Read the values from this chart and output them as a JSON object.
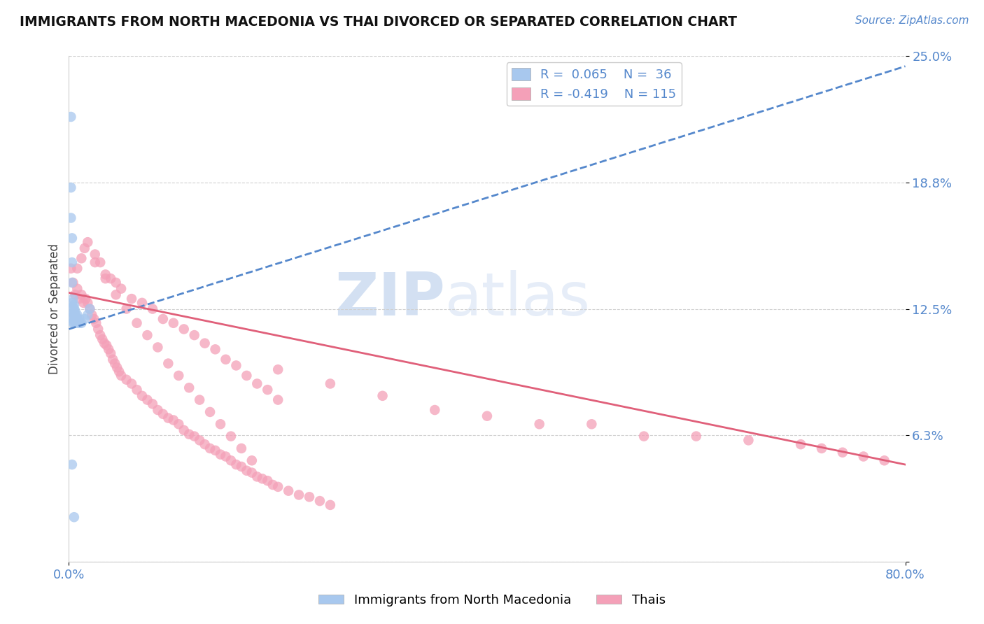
{
  "title": "IMMIGRANTS FROM NORTH MACEDONIA VS THAI DIVORCED OR SEPARATED CORRELATION CHART",
  "source_text": "Source: ZipAtlas.com",
  "ylabel": "Divorced or Separated",
  "xlim": [
    0.0,
    0.8
  ],
  "ylim": [
    0.0,
    0.25
  ],
  "yticks": [
    0.0,
    0.0625,
    0.125,
    0.1875,
    0.25
  ],
  "yticklabels": [
    "",
    "6.3%",
    "12.5%",
    "18.8%",
    "25.0%"
  ],
  "grid_color": "#d0d0d0",
  "background_color": "#ffffff",
  "blue_color": "#a8c8ee",
  "pink_color": "#f4a0b8",
  "blue_line_color": "#5588cc",
  "pink_line_color": "#e0607a",
  "watermark_text": "ZIPatlas",
  "blue_scatter_x": [
    0.002,
    0.002,
    0.002,
    0.003,
    0.003,
    0.003,
    0.003,
    0.004,
    0.004,
    0.004,
    0.004,
    0.004,
    0.005,
    0.005,
    0.005,
    0.005,
    0.005,
    0.005,
    0.005,
    0.006,
    0.006,
    0.006,
    0.007,
    0.007,
    0.007,
    0.008,
    0.008,
    0.009,
    0.01,
    0.01,
    0.012,
    0.015,
    0.018,
    0.02,
    0.003,
    0.005
  ],
  "blue_scatter_y": [
    0.22,
    0.185,
    0.17,
    0.16,
    0.148,
    0.138,
    0.128,
    0.13,
    0.126,
    0.123,
    0.12,
    0.118,
    0.127,
    0.125,
    0.123,
    0.122,
    0.12,
    0.119,
    0.118,
    0.124,
    0.122,
    0.12,
    0.121,
    0.12,
    0.118,
    0.122,
    0.12,
    0.119,
    0.118,
    0.12,
    0.118,
    0.12,
    0.122,
    0.125,
    0.048,
    0.022
  ],
  "pink_scatter_x": [
    0.002,
    0.004,
    0.006,
    0.008,
    0.01,
    0.012,
    0.014,
    0.016,
    0.018,
    0.02,
    0.022,
    0.024,
    0.026,
    0.028,
    0.03,
    0.032,
    0.034,
    0.036,
    0.038,
    0.04,
    0.042,
    0.044,
    0.046,
    0.048,
    0.05,
    0.055,
    0.06,
    0.065,
    0.07,
    0.075,
    0.08,
    0.085,
    0.09,
    0.095,
    0.1,
    0.105,
    0.11,
    0.115,
    0.12,
    0.125,
    0.13,
    0.135,
    0.14,
    0.145,
    0.15,
    0.155,
    0.16,
    0.165,
    0.17,
    0.175,
    0.18,
    0.185,
    0.19,
    0.195,
    0.2,
    0.21,
    0.22,
    0.23,
    0.24,
    0.25,
    0.008,
    0.012,
    0.018,
    0.025,
    0.03,
    0.035,
    0.04,
    0.045,
    0.05,
    0.06,
    0.07,
    0.08,
    0.09,
    0.1,
    0.11,
    0.12,
    0.13,
    0.14,
    0.15,
    0.16,
    0.17,
    0.18,
    0.19,
    0.2,
    0.015,
    0.025,
    0.035,
    0.045,
    0.055,
    0.065,
    0.075,
    0.085,
    0.095,
    0.105,
    0.115,
    0.125,
    0.135,
    0.145,
    0.155,
    0.165,
    0.175,
    0.4,
    0.5,
    0.6,
    0.65,
    0.7,
    0.72,
    0.74,
    0.76,
    0.78,
    0.35,
    0.45,
    0.55,
    0.3,
    0.25,
    0.2
  ],
  "pink_scatter_y": [
    0.145,
    0.138,
    0.132,
    0.135,
    0.13,
    0.132,
    0.128,
    0.13,
    0.128,
    0.125,
    0.122,
    0.12,
    0.118,
    0.115,
    0.112,
    0.11,
    0.108,
    0.107,
    0.105,
    0.103,
    0.1,
    0.098,
    0.096,
    0.094,
    0.092,
    0.09,
    0.088,
    0.085,
    0.082,
    0.08,
    0.078,
    0.075,
    0.073,
    0.071,
    0.07,
    0.068,
    0.065,
    0.063,
    0.062,
    0.06,
    0.058,
    0.056,
    0.055,
    0.053,
    0.052,
    0.05,
    0.048,
    0.047,
    0.045,
    0.044,
    0.042,
    0.041,
    0.04,
    0.038,
    0.037,
    0.035,
    0.033,
    0.032,
    0.03,
    0.028,
    0.145,
    0.15,
    0.158,
    0.152,
    0.148,
    0.142,
    0.14,
    0.138,
    0.135,
    0.13,
    0.128,
    0.125,
    0.12,
    0.118,
    0.115,
    0.112,
    0.108,
    0.105,
    0.1,
    0.097,
    0.092,
    0.088,
    0.085,
    0.08,
    0.155,
    0.148,
    0.14,
    0.132,
    0.125,
    0.118,
    0.112,
    0.106,
    0.098,
    0.092,
    0.086,
    0.08,
    0.074,
    0.068,
    0.062,
    0.056,
    0.05,
    0.072,
    0.068,
    0.062,
    0.06,
    0.058,
    0.056,
    0.054,
    0.052,
    0.05,
    0.075,
    0.068,
    0.062,
    0.082,
    0.088,
    0.095
  ],
  "blue_line_x0": 0.0,
  "blue_line_y0": 0.115,
  "blue_line_x1": 0.8,
  "blue_line_y1": 0.245,
  "pink_line_x0": 0.0,
  "pink_line_y0": 0.133,
  "pink_line_x1": 0.8,
  "pink_line_y1": 0.048
}
